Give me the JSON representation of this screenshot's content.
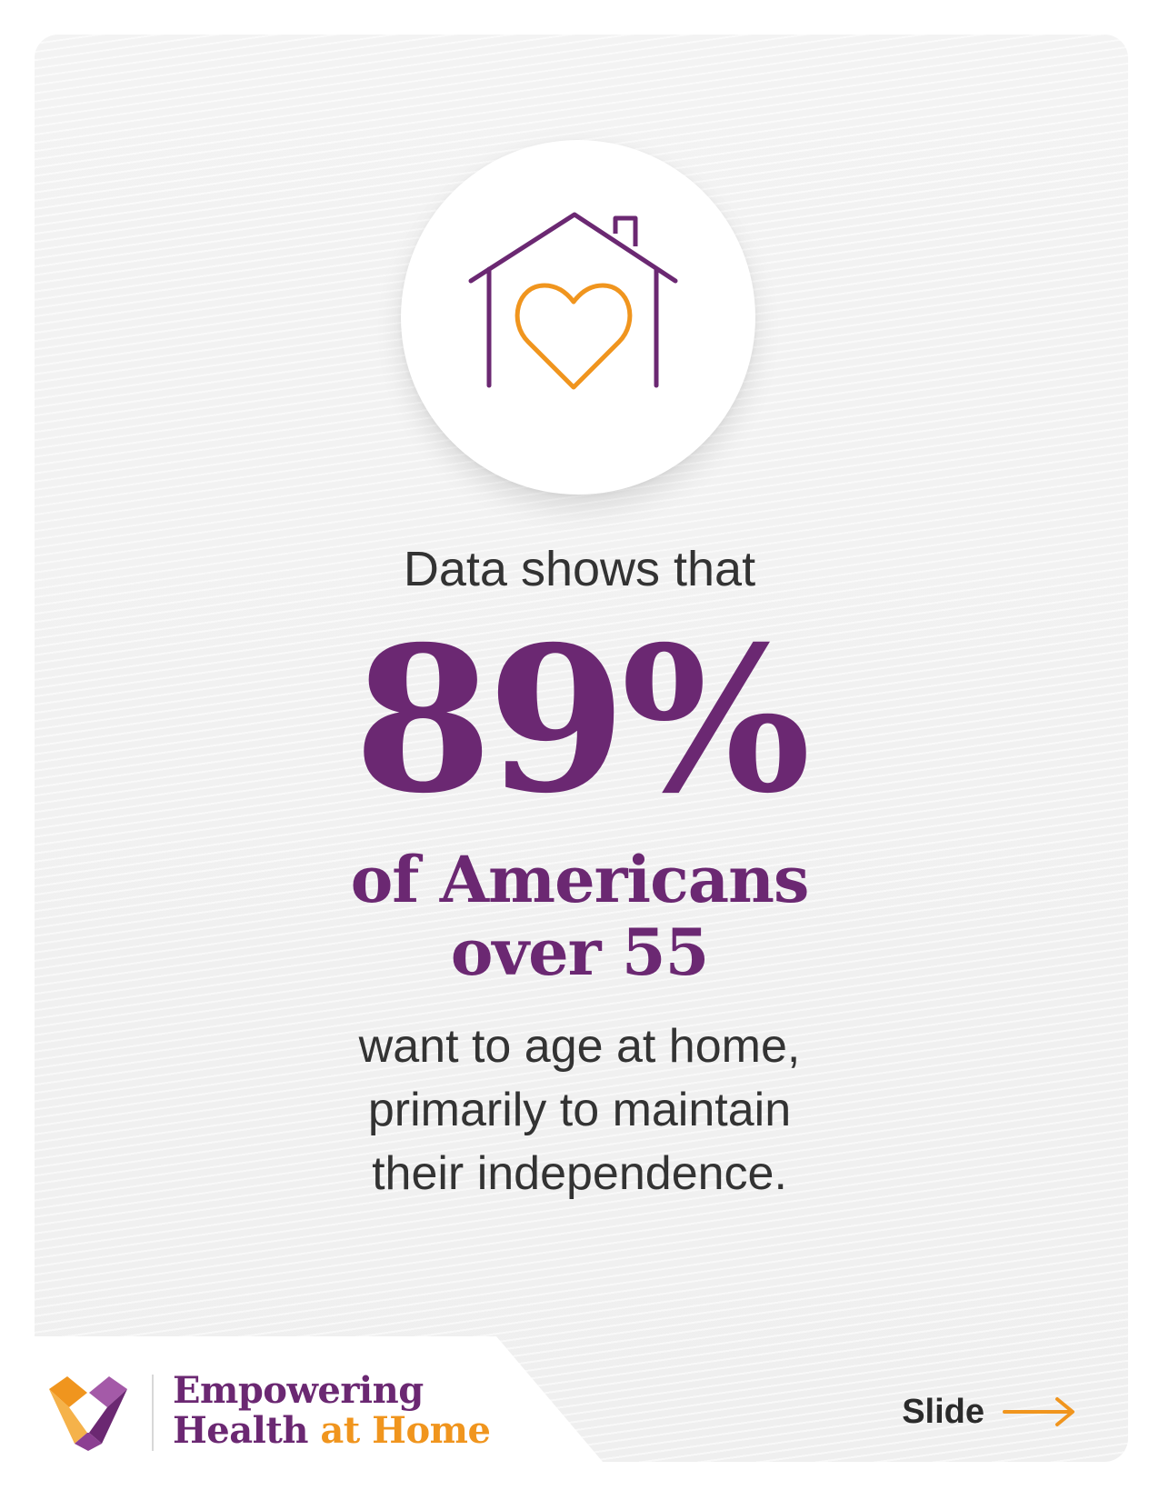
{
  "intro": "Data shows that",
  "stat": "89%",
  "subject": [
    "of Americans",
    "over 55"
  ],
  "detail": [
    "want to age at home,",
    "primarily to maintain",
    "their independence."
  ],
  "icon": "house-heart-icon",
  "brand": {
    "line1": "Empowering",
    "line2_main": "Health",
    "line2_accent": "at Home",
    "logo": "heart-ribbon-logo"
  },
  "nav": {
    "label": "Slide",
    "icon": "arrow-right-icon"
  },
  "colors": {
    "purple": "#6b2872",
    "orange": "#f0951e",
    "text": "#333333"
  }
}
